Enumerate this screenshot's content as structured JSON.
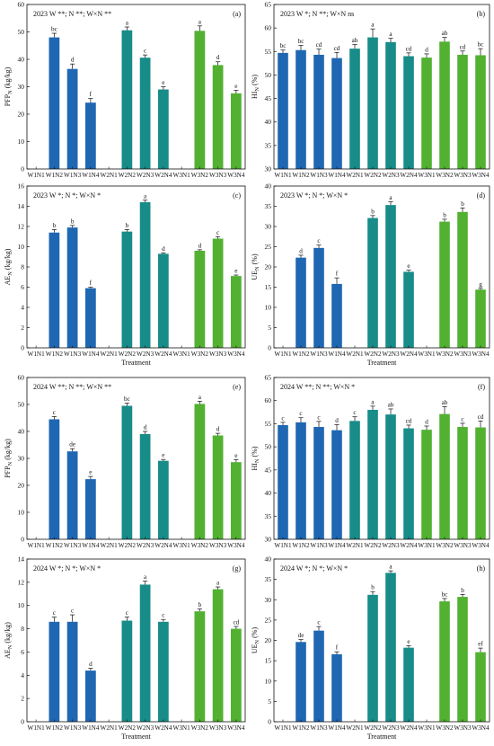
{
  "chart_data": [
    {
      "id": "a",
      "type": "bar",
      "panel_label": "(a)",
      "title": "2023   W **; N **; W×N **",
      "ylabel": "PFP_N (kg/kg)",
      "xlabel": "",
      "ylim": [
        0,
        60
      ],
      "yticks": [
        0,
        10,
        20,
        30,
        40,
        50,
        60
      ],
      "categories": [
        "W1N1",
        "W1N2",
        "W1N3",
        "W1N4",
        "W2N1",
        "W2N2",
        "W2N3",
        "W2N4",
        "W3N1",
        "W3N2",
        "W3N3",
        "W3N4"
      ],
      "values": [
        null,
        48.0,
        36.5,
        24.2,
        null,
        50.6,
        40.6,
        29.0,
        null,
        50.4,
        37.9,
        27.6
      ],
      "errors": [
        0,
        1.5,
        1.8,
        1.5,
        0,
        1.2,
        1.0,
        1.0,
        0,
        1.8,
        1.2,
        1.1
      ],
      "letters": [
        "",
        "bc",
        "d",
        "f",
        "",
        "a",
        "c",
        "e",
        "",
        "a",
        "d",
        "e"
      ]
    },
    {
      "id": "b",
      "type": "bar",
      "panel_label": "(b)",
      "title": "2023   W *; N **; W×N ns",
      "ylabel": "HI_N (%)",
      "xlabel": "",
      "ylim": [
        30,
        65
      ],
      "yticks": [
        30,
        35,
        40,
        45,
        50,
        55,
        60,
        65
      ],
      "categories": [
        "W1N1",
        "W1N2",
        "W1N3",
        "W1N4",
        "W2N1",
        "W2N2",
        "W2N3",
        "W2N4",
        "W3N1",
        "W3N2",
        "W3N3",
        "W3N4"
      ],
      "values": [
        54.7,
        55.3,
        54.3,
        53.6,
        55.6,
        58.0,
        57.0,
        54.0,
        53.7,
        57.1,
        54.3,
        54.2
      ],
      "errors": [
        0.6,
        1.0,
        1.2,
        1.2,
        0.9,
        1.8,
        0.8,
        0.7,
        0.8,
        0.9,
        0.8,
        1.4
      ],
      "letters": [
        "bc",
        "bc",
        "cd",
        "cd",
        "ab",
        "a",
        "a",
        "cd",
        "d",
        "ab",
        "cd",
        "bc"
      ]
    },
    {
      "id": "c",
      "type": "bar",
      "panel_label": "(c)",
      "title": "2023   W *; N *; W×N *",
      "ylabel": "AE_N (kg/kg)",
      "xlabel": "Treatment",
      "ylim": [
        0,
        16
      ],
      "yticks": [
        0,
        2,
        4,
        6,
        8,
        10,
        12,
        14,
        16
      ],
      "categories": [
        "W1N1",
        "W1N2",
        "W1N3",
        "W1N4",
        "W2N1",
        "W2N2",
        "W2N3",
        "W2N4",
        "W3N1",
        "W3N2",
        "W3N3",
        "W3N4"
      ],
      "values": [
        null,
        11.4,
        11.9,
        5.9,
        null,
        11.5,
        14.4,
        9.3,
        null,
        9.6,
        10.8,
        7.1
      ],
      "errors": [
        0,
        0.3,
        0.2,
        0.1,
        0,
        0.2,
        0.2,
        0.1,
        0,
        0.1,
        0.2,
        0.1
      ],
      "letters": [
        "",
        "b",
        "b",
        "f",
        "",
        "b",
        "a",
        "d",
        "",
        "d",
        "c",
        "e"
      ]
    },
    {
      "id": "d",
      "type": "bar",
      "panel_label": "(d)",
      "title": "2023   W *; N *; W×N *",
      "ylabel": "UE_N (%)",
      "xlabel": "Treatment",
      "ylim": [
        0,
        40
      ],
      "yticks": [
        0,
        5,
        10,
        15,
        20,
        25,
        30,
        35,
        40
      ],
      "categories": [
        "W1N1",
        "W1N2",
        "W1N3",
        "W1N4",
        "W2N1",
        "W2N2",
        "W2N3",
        "W2N4",
        "W3N1",
        "W3N2",
        "W3N3",
        "W3N4"
      ],
      "values": [
        null,
        22.3,
        24.7,
        15.8,
        null,
        32.1,
        35.3,
        18.8,
        null,
        31.2,
        33.6,
        14.4
      ],
      "errors": [
        0,
        0.6,
        0.7,
        1.5,
        0,
        0.6,
        0.8,
        0.4,
        0,
        0.6,
        1.0,
        0.3
      ],
      "letters": [
        "",
        "d",
        "c",
        "f",
        "",
        "b",
        "a",
        "e",
        "",
        "b",
        "b",
        "g"
      ]
    },
    {
      "id": "e",
      "type": "bar",
      "panel_label": "(e)",
      "title": "2024   W **; N **; W×N **",
      "ylabel": "PFP_N (kg/kg)",
      "xlabel": "",
      "ylim": [
        0,
        60
      ],
      "yticks": [
        0,
        10,
        20,
        30,
        40,
        50,
        60
      ],
      "categories": [
        "W1N1",
        "W1N2",
        "W1N3",
        "W1N4",
        "W2N1",
        "W2N2",
        "W2N3",
        "W2N4",
        "W3N1",
        "W3N2",
        "W3N3",
        "W3N4"
      ],
      "values": [
        null,
        44.5,
        32.6,
        22.3,
        null,
        49.5,
        39.0,
        29.1,
        null,
        50.2,
        38.5,
        28.6
      ],
      "errors": [
        0,
        1.0,
        1.0,
        1.0,
        0,
        1.0,
        1.0,
        0.5,
        0,
        1.0,
        0.8,
        0.9
      ],
      "letters": [
        "",
        "c",
        "de",
        "e",
        "",
        "bc",
        "d",
        "e",
        "",
        "a",
        "d",
        "e"
      ]
    },
    {
      "id": "f",
      "type": "bar",
      "panel_label": "(f)",
      "title": "2024   W **; N **; W×N *",
      "ylabel": "HI_N (%)",
      "xlabel": "",
      "ylim": [
        30,
        65
      ],
      "yticks": [
        30,
        35,
        40,
        45,
        50,
        55,
        60,
        65
      ],
      "categories": [
        "W1N1",
        "W1N2",
        "W1N3",
        "W1N4",
        "W2N1",
        "W2N2",
        "W2N3",
        "W2N4",
        "W3N1",
        "W3N2",
        "W3N3",
        "W3N4"
      ],
      "values": [
        54.7,
        55.3,
        54.3,
        53.6,
        55.6,
        58.0,
        57.0,
        54.0,
        53.7,
        57.1,
        54.3,
        54.2
      ],
      "errors": [
        0.6,
        1.0,
        1.2,
        1.2,
        0.9,
        0.8,
        1.2,
        0.7,
        0.8,
        1.6,
        0.8,
        1.4
      ],
      "letters": [
        "c",
        "c",
        "c",
        "d",
        "c",
        "a",
        "ab",
        "cd",
        "d",
        "ab",
        "c",
        "cd"
      ]
    },
    {
      "id": "g",
      "type": "bar",
      "panel_label": "(g)",
      "title": "2024   W *; N *; W×N *",
      "ylabel": "AE_N (kg/kg)",
      "xlabel": "Treatment",
      "ylim": [
        0,
        14
      ],
      "yticks": [
        0,
        2,
        4,
        6,
        8,
        10,
        12,
        14
      ],
      "categories": [
        "W1N1",
        "W1N2",
        "W1N3",
        "W1N4",
        "W2N1",
        "W2N2",
        "W2N3",
        "W2N4",
        "W3N1",
        "W3N2",
        "W3N3",
        "W3N4"
      ],
      "values": [
        null,
        8.6,
        8.6,
        4.4,
        null,
        8.7,
        11.8,
        8.6,
        null,
        9.5,
        11.4,
        8.0
      ],
      "errors": [
        0,
        0.4,
        0.6,
        0.2,
        0,
        0.3,
        0.3,
        0.2,
        0,
        0.2,
        0.2,
        0.2
      ],
      "letters": [
        "",
        "c",
        "c",
        "d",
        "",
        "c",
        "a",
        "c",
        "",
        "b",
        "a",
        "cd"
      ]
    },
    {
      "id": "h",
      "type": "bar",
      "panel_label": "(h)",
      "title": "2024   W *; N *; W×N *",
      "ylabel": "UE_N (%)",
      "xlabel": "Treatment",
      "ylim": [
        0,
        40
      ],
      "yticks": [
        0,
        5,
        10,
        15,
        20,
        25,
        30,
        35,
        40
      ],
      "categories": [
        "W1N1",
        "W1N2",
        "W1N3",
        "W1N4",
        "W2N1",
        "W2N2",
        "W2N3",
        "W2N4",
        "W3N1",
        "W3N2",
        "W3N3",
        "W3N4"
      ],
      "values": [
        null,
        19.6,
        22.4,
        16.6,
        null,
        31.2,
        36.6,
        18.2,
        null,
        29.6,
        30.7,
        17.1
      ],
      "errors": [
        0,
        0.6,
        1.0,
        0.6,
        0,
        0.8,
        0.5,
        0.5,
        0,
        0.7,
        0.6,
        1.0
      ],
      "letters": [
        "",
        "de",
        "c",
        "f",
        "",
        "b",
        "a",
        "e",
        "",
        "bc",
        "b",
        "ef"
      ]
    }
  ],
  "colors": {
    "W1": "#1f67b2",
    "W2": "#178c88",
    "W3": "#52b131",
    "axis": "#111111"
  }
}
